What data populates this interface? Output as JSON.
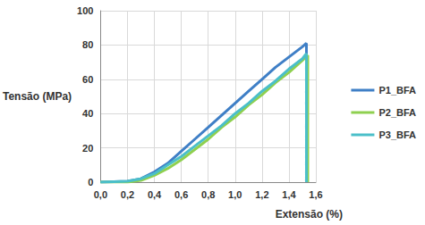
{
  "chart_data": {
    "type": "line",
    "y_label": "Tensão (MPa)",
    "x_label": "Extensão (%)",
    "xlim": [
      0,
      1.6
    ],
    "xticks": [
      {
        "value": 0,
        "label": "0,0"
      },
      {
        "value": 0.2,
        "label": "0,2"
      },
      {
        "value": 0.4,
        "label": "0,4"
      },
      {
        "value": 0.6,
        "label": "0,6"
      },
      {
        "value": 0.8,
        "label": "0,8"
      },
      {
        "value": 1.0,
        "label": "1,0"
      },
      {
        "value": 1.2,
        "label": "1,2"
      },
      {
        "value": 1.4,
        "label": "1,4"
      },
      {
        "value": 1.6,
        "label": "1,6"
      }
    ],
    "ylim": [
      0,
      100
    ],
    "yticks": [
      0,
      20,
      40,
      60,
      80,
      100
    ],
    "grid": true,
    "legend": "right",
    "series": [
      {
        "name": "P1_BFA",
        "color": "#3f7fc6",
        "x": [
          0,
          0.2,
          0.3,
          0.4,
          0.5,
          0.6,
          0.7,
          0.8,
          0.9,
          1.0,
          1.1,
          1.2,
          1.3,
          1.4,
          1.5,
          1.53,
          1.53
        ],
        "values": [
          0,
          0.5,
          2,
          6,
          11,
          18,
          25,
          32,
          39,
          46,
          53,
          60,
          67,
          73,
          79,
          81,
          0
        ]
      },
      {
        "name": "P2_BFA",
        "color": "#8fd04f",
        "x": [
          0,
          0.2,
          0.3,
          0.4,
          0.5,
          0.6,
          0.7,
          0.8,
          0.9,
          1.0,
          1.1,
          1.2,
          1.3,
          1.4,
          1.5,
          1.54,
          1.54
        ],
        "values": [
          0,
          0,
          1,
          4,
          8,
          13,
          19,
          25,
          32,
          38,
          45,
          51,
          58,
          64,
          71,
          74,
          0
        ]
      },
      {
        "name": "P3_BFA",
        "color": "#4bbfc9",
        "x": [
          0,
          0.2,
          0.3,
          0.4,
          0.5,
          0.6,
          0.7,
          0.8,
          0.9,
          1.0,
          1.1,
          1.2,
          1.3,
          1.4,
          1.5,
          1.53,
          1.53
        ],
        "values": [
          0,
          0.5,
          2,
          5,
          10,
          15,
          21,
          27,
          33,
          40,
          46,
          53,
          59,
          66,
          72,
          75,
          0
        ]
      }
    ]
  }
}
